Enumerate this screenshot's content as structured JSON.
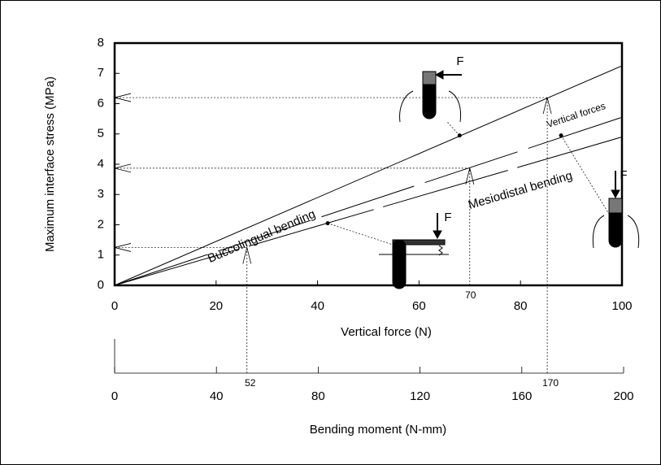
{
  "chart_data": {
    "type": "line",
    "y_label": "Maximum interface stress (MPa)",
    "x_label": "Vertical force (N)",
    "x2_label": "Bending moment (N-mm)",
    "xlim": [
      0,
      100
    ],
    "xticks": [
      0,
      20,
      40,
      60,
      80,
      100
    ],
    "ylim": [
      0,
      8
    ],
    "yticks": [
      0,
      1,
      2,
      3,
      4,
      5,
      6,
      7,
      8
    ],
    "x2lim": [
      0,
      200
    ],
    "x2ticks": [
      0,
      40,
      80,
      120,
      160,
      200
    ],
    "series": [
      {
        "name": "Buccolingual bending",
        "color": "#000000",
        "x": [
          0,
          100
        ],
        "values": [
          0,
          7.25
        ],
        "marker": {
          "x": 68,
          "y": 4.95
        }
      },
      {
        "name": "Vertical forces",
        "color": "#000000",
        "x": [
          0,
          100
        ],
        "values": [
          0,
          5.55
        ],
        "marker": {
          "x": 88,
          "y": 4.95
        }
      },
      {
        "name": "Mesiodistal bending",
        "color": "#000000",
        "x": [
          0,
          100
        ],
        "values": [
          0,
          4.9
        ],
        "marker": {
          "x": 42,
          "y": 2.05
        }
      }
    ],
    "guides": [
      {
        "moment": 52,
        "stress": 1.25
      },
      {
        "force": 70,
        "stress": 3.87
      },
      {
        "moment": 170,
        "stress": 6.2
      }
    ],
    "force_labels": [
      "F",
      "F",
      "F"
    ]
  }
}
